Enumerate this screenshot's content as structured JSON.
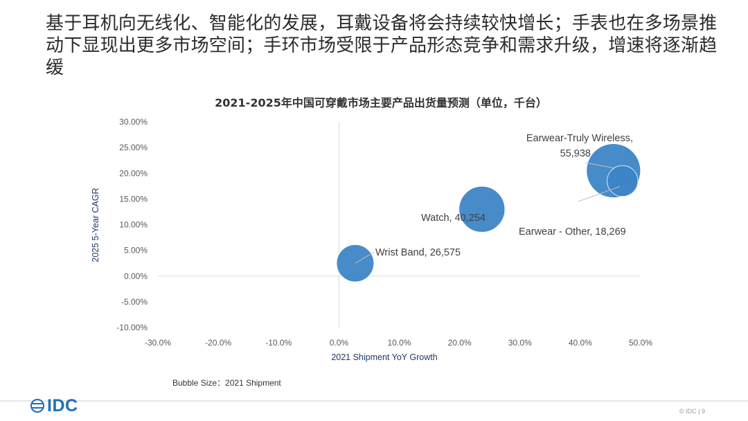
{
  "slide": {
    "headline": "基于耳机向无线化、智能化的发展，耳戴设备将会持续较快增长；手表也在多场景推动下显现出更多市场空间；手环市场受限于产品形态竞争和需求升级，增速将逐渐趋缓",
    "bubble_size_note": "Bubble Size：2021 Shipment",
    "logo_text": "IDC",
    "footer_text": "© IDC",
    "page_number": "9"
  },
  "chart_data": {
    "type": "scatter",
    "title": "2021-2025年中国可穿戴市场主要产品出货量预测（单位，千台）",
    "xlabel": "2021 Shipment YoY Growth",
    "ylabel": "2025 5-Year CAGR",
    "xlim": [
      -0.3,
      0.5
    ],
    "ylim": [
      -0.1,
      0.3
    ],
    "x_ticks": [
      "-30.0%",
      "-20.0%",
      "-10.0%",
      "0.0%",
      "10.0%",
      "20.0%",
      "30.0%",
      "40.0%",
      "50.0%"
    ],
    "y_ticks": [
      "30.00%",
      "25.00%",
      "20.00%",
      "15.00%",
      "10.00%",
      "5.00%",
      "0.00%",
      "-5.00%",
      "-10.00%"
    ],
    "grid": false,
    "bubble_color": "#3d85c6",
    "points": [
      {
        "label": "Wrist Band, 26,575",
        "x": 0.027,
        "y": 0.025,
        "size": 26575
      },
      {
        "label": "Watch, 40,254",
        "x": 0.237,
        "y": 0.13,
        "size": 40254
      },
      {
        "label": "Earwear-Truly Wireless, 55,938",
        "x": 0.455,
        "y": 0.205,
        "size": 55938
      },
      {
        "label": "Earwear - Other, 18,269",
        "x": 0.47,
        "y": 0.185,
        "size": 18269
      }
    ]
  }
}
